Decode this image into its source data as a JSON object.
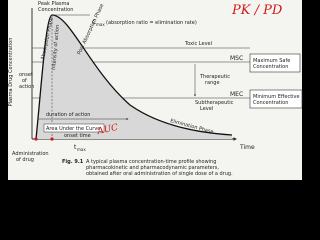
{
  "figure": {
    "y_axis_label": "Plasma Drug Concentration",
    "x_axis_label": "Time",
    "peak": [
      "Peak Plasma",
      "Concentration"
    ],
    "cmax": {
      "symbol": "C",
      "subscript": "max",
      "note": "(absorption ratio = elimination rate)"
    },
    "phases": {
      "absorption": "Absorption Phase",
      "intensity": "Intensity of action",
      "post_absorption": "Post Absorption Phase",
      "elimination": "Elimination Phase"
    },
    "levels": {
      "toxic": "Toxic Level",
      "therapeutic": [
        "Therapeutic",
        "range"
      ],
      "subtherapeutic": [
        "Subtherapeutic",
        "Level"
      ]
    },
    "msc": {
      "abbr": "MSC",
      "box": [
        "Maximum Safe",
        "Concentration"
      ]
    },
    "mec": {
      "abbr": "MEC",
      "box": [
        "Minimum Effective",
        "Concentration"
      ]
    },
    "onset": [
      "onset",
      "of",
      "action"
    ],
    "duration": "duration of action",
    "auc": "Area Under the Curve",
    "onset_time": "onset time",
    "tmax": {
      "symbol": "t",
      "subscript": "max"
    },
    "administration": [
      "Administration",
      "of drug"
    ],
    "caption": {
      "label": "Fig. 9.1",
      "lines": [
        "A typical plasma concentration-time profile showing",
        "pharmacokinetic and pharmacodynamic parameters,",
        "obtained after oral administration of single dose of a drug."
      ]
    },
    "handwriting": {
      "top": "PK / PD",
      "bottom": "AUC"
    }
  }
}
